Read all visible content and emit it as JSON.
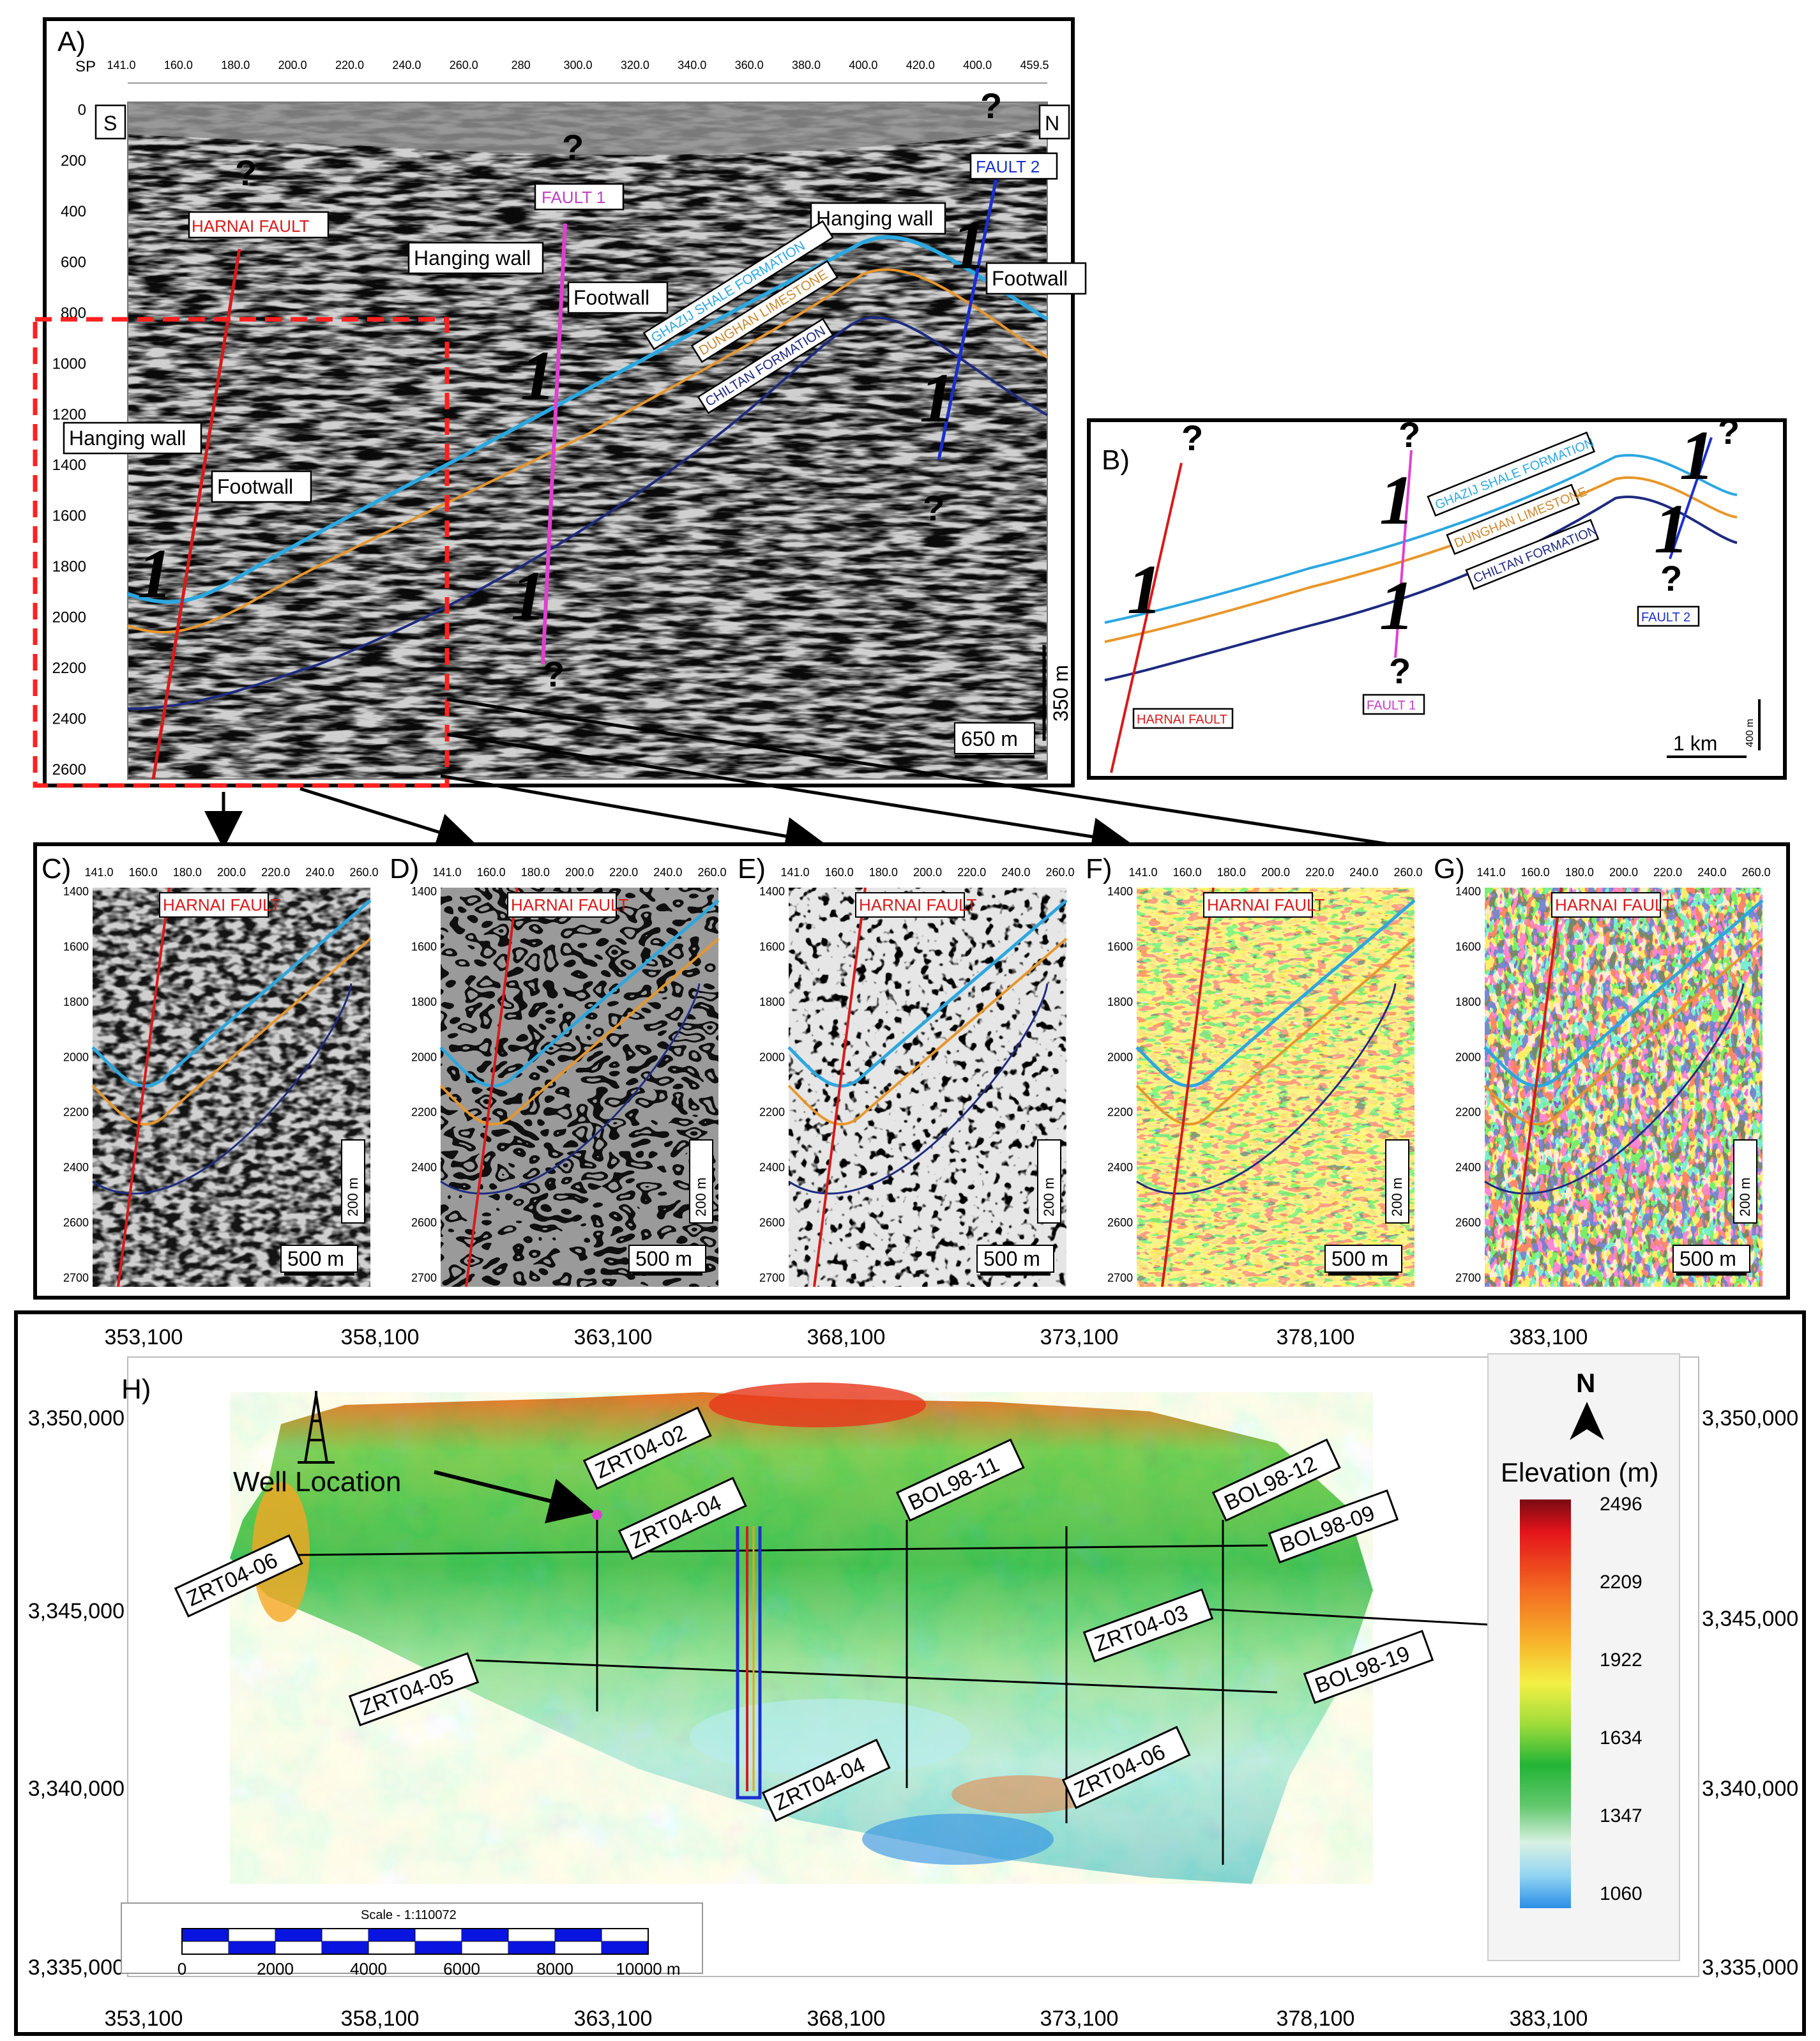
{
  "colors": {
    "harnai_fault": "#d81a1a",
    "fault1": "#e040d0",
    "fault2": "#1a2fd0",
    "ghazij": "#2ba7e0",
    "dunghan": "#e8962a",
    "chiltan": "#1e2a80",
    "dashed_box": "#ff2020"
  },
  "panelA": {
    "letter": "A)",
    "sp_label": "SP",
    "sp_ticks": [
      "141.0",
      "160.0",
      "180.0",
      "200.0",
      "220.0",
      "240.0",
      "260.0",
      "280",
      "300.0",
      "320.0",
      "340.0",
      "360.0",
      "380.0",
      "400.0",
      "420.0",
      "400.0",
      "459.5"
    ],
    "depth_ticks": [
      "0",
      "200",
      "400",
      "600",
      "800",
      "1000",
      "1200",
      "1400",
      "1600",
      "1800",
      "2000",
      "2200",
      "2400",
      "2600"
    ],
    "south": "S",
    "north": "N",
    "harnai_fault": "HARNAI FAULT",
    "fault1": "FAULT 1",
    "fault2": "FAULT 2",
    "hanging_wall": "Hanging wall",
    "footwall": "Footwall",
    "ghazij": "GHAZIJ SHALE FORMATION",
    "dunghan": "DUNGHAN LIMESTONE",
    "chiltan": "CHILTAN FORMATION",
    "question": "?",
    "throw": "1",
    "scale_h": "650 m",
    "scale_v": "350 m"
  },
  "panelB": {
    "letter": "B)",
    "ghazij": "GHAZIJ SHALE FORMATION",
    "dunghan": "DUNGHAN LIMESTONE",
    "chiltan": "CHILTAN FORMATION",
    "harnai_fault": "HARNAI FAULT",
    "fault1": "FAULT 1",
    "fault2": "FAULT 2",
    "scale_h": "1 km",
    "scale_v": "400 m"
  },
  "attr_panels": {
    "ticks_x": [
      "141.0",
      "160.0",
      "180.0",
      "200.0",
      "220.0",
      "240.0",
      "260.0"
    ],
    "ticks_y": [
      "1400",
      "1600",
      "1800",
      "2000",
      "2200",
      "2400",
      "2600",
      "2700"
    ],
    "fault_label": "HARNAI FAULT",
    "scale_h": "500 m",
    "scale_v": "200 m",
    "letters": [
      "C)",
      "D)",
      "E)",
      "F)",
      "G)"
    ]
  },
  "panelH": {
    "letter": "H)",
    "x_ticks": [
      "353,100",
      "358,100",
      "363,100",
      "368,100",
      "373,100",
      "378,100",
      "383,100"
    ],
    "y_ticks": [
      "3,350,000",
      "3,345,000",
      "3,340,000",
      "3,335,000"
    ],
    "well_label": "Well Location",
    "lines": [
      "ZRT04-02",
      "ZRT04-04",
      "BOL98-11",
      "BOL98-12",
      "BOL98-09",
      "ZRT04-06",
      "ZRT04-03",
      "ZRT04-05",
      "BOL98-19",
      "ZRT04-04",
      "ZRT04-06"
    ],
    "north": "N",
    "legend_title": "Elevation (m)",
    "legend_values": [
      "2496",
      "2209",
      "1922",
      "1634",
      "1347",
      "1060"
    ],
    "scale_title": "Scale - 1:110072",
    "scale_ticks": [
      "0",
      "2000",
      "4000",
      "6000",
      "8000",
      "10000 m"
    ]
  }
}
